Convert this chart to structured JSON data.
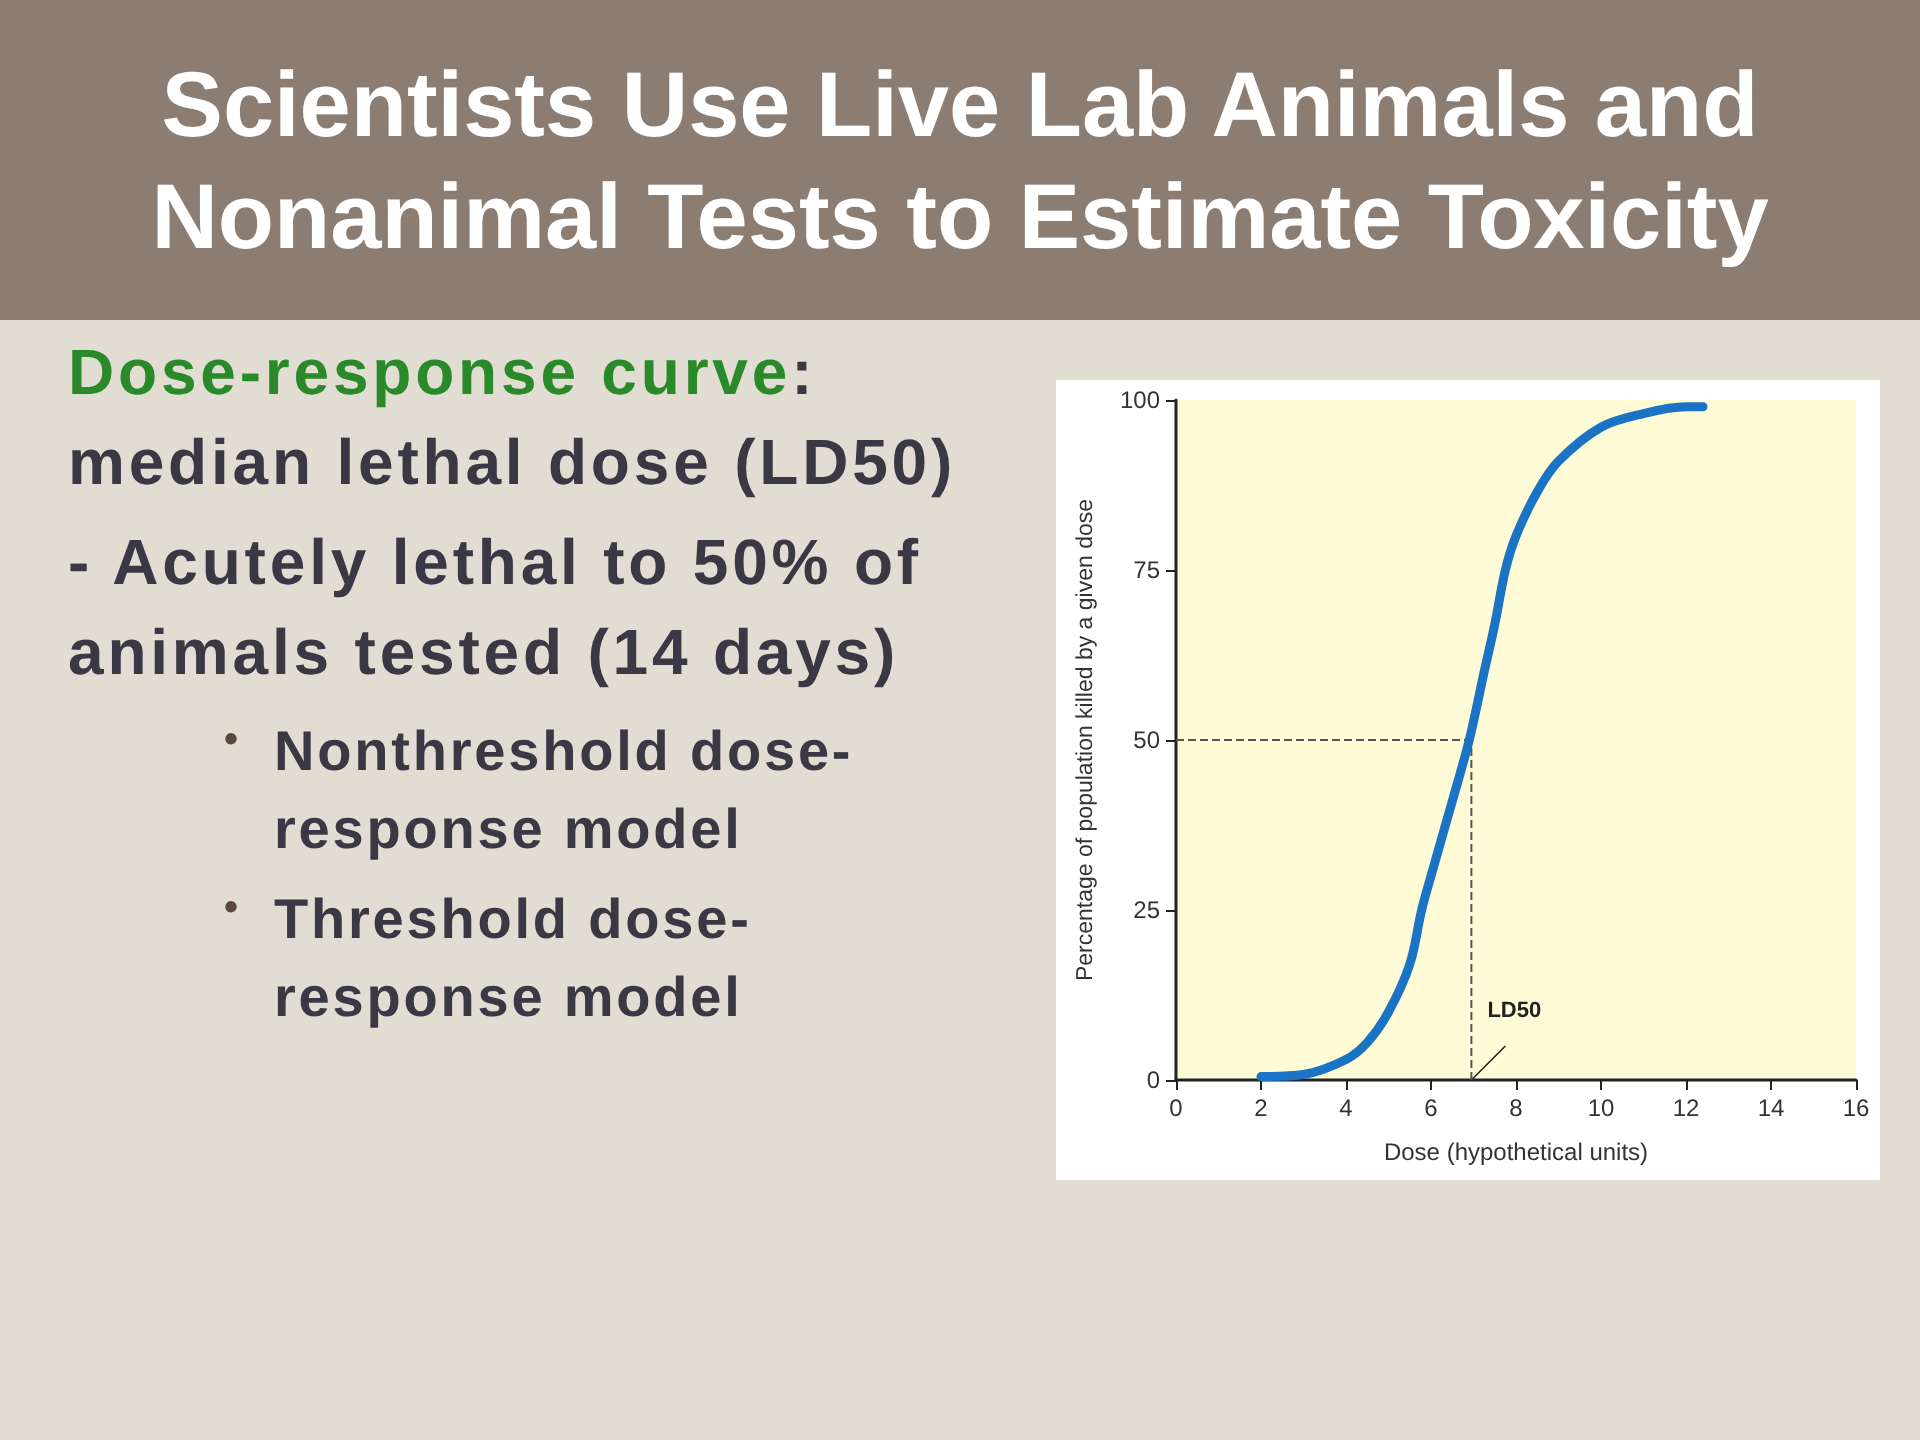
{
  "chart_data": {
    "type": "line",
    "title": "Scientists Use Live Lab Animals and Nonanimal Tests to Estimate Toxicity",
    "xlabel": "Dose (hypothetical units)",
    "ylabel": "Percentage of population killed by a given dose",
    "x": [
      2,
      3,
      4,
      4.5,
      5,
      5.5,
      5.78,
      6,
      6.5,
      6.9,
      7.25,
      7.5,
      7.75,
      8,
      8.5,
      9,
      10,
      11,
      12,
      12.4
    ],
    "series": [
      {
        "color": "#1a73c4",
        "values": [
          0.5,
          0.8,
          3,
          5.5,
          10,
          17,
          25,
          30,
          41,
          50,
          60,
          67,
          75,
          80,
          86.5,
          91,
          96,
          98,
          99,
          99
        ]
      }
    ],
    "xlim": [
      0,
      16
    ],
    "xticks": [
      0,
      2,
      4,
      6,
      8,
      10,
      12,
      14,
      16
    ],
    "ylim": [
      0,
      100
    ],
    "yticks": [
      0,
      25,
      50,
      75,
      100
    ],
    "grid": false,
    "marker": "none",
    "line_style": "solid",
    "ref_lines": [
      {
        "axis": "y",
        "value": 50,
        "line_style": "dashed",
        "color": "#555555"
      },
      {
        "axis": "x",
        "value": 6.95,
        "label": "LD50",
        "line_style": "dashed",
        "color": "#555555"
      }
    ],
    "annotations": [
      "Dose-response curve: median lethal dose (LD50)",
      "- Acutely lethal to 50% of animals tested (14 days)",
      "• Nonthreshold dose-response model",
      "• Threshold dose-response model"
    ]
  }
}
